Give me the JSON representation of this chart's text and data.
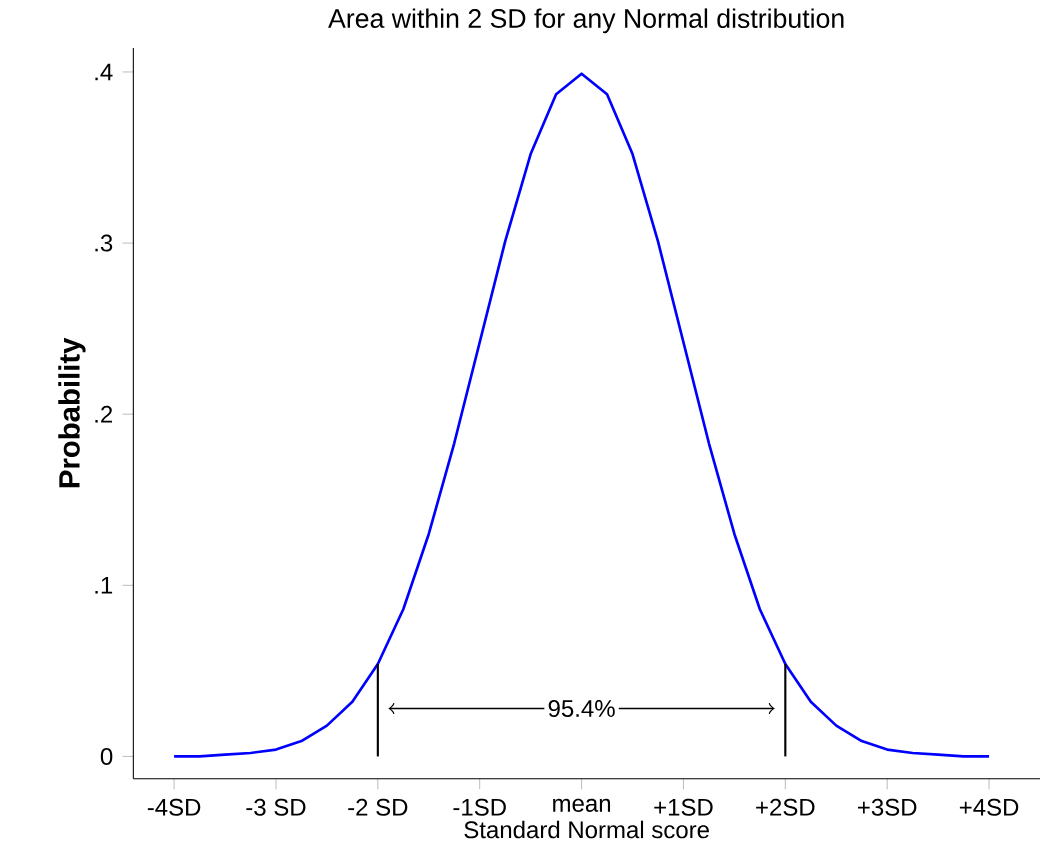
{
  "chart_data": {
    "type": "line",
    "title": "Area within 2 SD for any Normal distribution",
    "xlabel": "Standard Normal score",
    "ylabel": "Probability",
    "xlim": [
      -4.4,
      4.5
    ],
    "ylim": [
      -0.013,
      0.414
    ],
    "xticks": [
      {
        "value": -4,
        "label": "-4SD"
      },
      {
        "value": -3,
        "label": "-3 SD"
      },
      {
        "value": -2,
        "label": "-2 SD"
      },
      {
        "value": -1,
        "label": "-1SD"
      },
      {
        "value": 0,
        "label": "mean"
      },
      {
        "value": 1,
        "label": "+1SD"
      },
      {
        "value": 2,
        "label": "+2SD"
      },
      {
        "value": 3,
        "label": "+3SD"
      },
      {
        "value": 4,
        "label": "+4SD"
      }
    ],
    "yticks": [
      0,
      {
        "value": 0.1,
        "label": ".1"
      },
      {
        "value": 0.2,
        "label": ".2"
      },
      {
        "value": 0.3,
        "label": ".3"
      },
      {
        "value": 0.4,
        "label": ".4"
      }
    ],
    "grid": false,
    "marker": "none",
    "line_style": "solid",
    "series": [
      {
        "color": "#0000ff",
        "x": [
          -4,
          -3.75,
          -3.5,
          -3.25,
          -3,
          -2.75,
          -2.5,
          -2.25,
          -2,
          -1.75,
          -1.5,
          -1.25,
          -1,
          -0.75,
          -0.5,
          -0.25,
          0,
          0.25,
          0.5,
          0.75,
          1,
          1.25,
          1.5,
          1.75,
          2,
          2.25,
          2.5,
          2.75,
          3,
          3.25,
          3.5,
          3.75,
          4
        ],
        "values": [
          0.0,
          0.0,
          0.001,
          0.002,
          0.004,
          0.009,
          0.018,
          0.032,
          0.054,
          0.086,
          0.13,
          0.183,
          0.242,
          0.301,
          0.352,
          0.387,
          0.399,
          0.387,
          0.352,
          0.301,
          0.242,
          0.183,
          0.13,
          0.086,
          0.054,
          0.032,
          0.018,
          0.009,
          0.004,
          0.002,
          0.001,
          0.0,
          0.0
        ]
      }
    ],
    "ref_lines": [
      {
        "axis": "x",
        "value": -2,
        "color": "#000000"
      },
      {
        "axis": "x",
        "value": 2,
        "color": "#000000"
      }
    ],
    "annotations": [
      {
        "text": "95.4%",
        "x": 0,
        "y": 0.028
      }
    ]
  }
}
